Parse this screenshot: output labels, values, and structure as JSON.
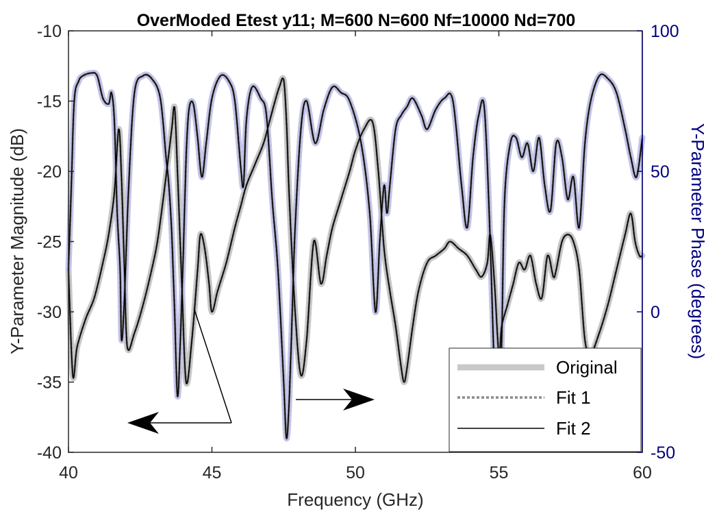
{
  "chart_data": {
    "type": "line",
    "title": "OverModed Etest y11; M=600 N=600 Nf=10000 Nd=700",
    "xlabel": "Frequency (GHz)",
    "ylabel_left": "Y-Parameter Magnitude (dB)",
    "ylabel_right": "Y-Parameter Phase (degrees)",
    "xlim": [
      40,
      60
    ],
    "ylim_left": [
      -40,
      -10
    ],
    "ylim_right": [
      -50,
      100
    ],
    "x_ticks": [
      "40",
      "45",
      "50",
      "55",
      "60"
    ],
    "y_left_ticks": [
      "-10",
      "-15",
      "-20",
      "-25",
      "-30",
      "-35",
      "-40"
    ],
    "y_right_ticks": [
      "100",
      "50",
      "0",
      "-50"
    ],
    "grid": false,
    "legend_position": "bottom-right",
    "legend": [
      "Original",
      "Fit 1",
      "Fit 2"
    ],
    "colors": {
      "original_magnitude": "#c8c8c8",
      "original_phase": "#c4c4ec",
      "fit1": "#8a8a8a",
      "fit2": "#000000",
      "right_axis": "#00007f"
    },
    "series": [
      {
        "name": "Magnitude",
        "axis": "left",
        "x": [
          40.0,
          40.15,
          40.3,
          40.6,
          40.9,
          41.2,
          41.4,
          41.6,
          41.75,
          41.85,
          41.95,
          42.05,
          42.3,
          42.6,
          42.9,
          43.1,
          43.3,
          43.45,
          43.6,
          43.7,
          43.8,
          43.95,
          44.1,
          44.3,
          44.5,
          44.6,
          44.75,
          44.9,
          45.0,
          45.2,
          45.5,
          45.8,
          46.0,
          46.2,
          46.5,
          46.8,
          47.0,
          47.2,
          47.35,
          47.5,
          47.6,
          47.7,
          47.9,
          48.1,
          48.3,
          48.55,
          48.8,
          49.0,
          49.2,
          49.5,
          49.8,
          50.0,
          50.3,
          50.6,
          50.8,
          51.0,
          51.2,
          51.4,
          51.6,
          51.7,
          51.8,
          52.0,
          52.2,
          52.5,
          52.8,
          53.1,
          53.3,
          53.6,
          53.9,
          54.2,
          54.4,
          54.6,
          54.7,
          54.85,
          55.0,
          55.1,
          55.3,
          55.5,
          55.7,
          55.9,
          56.1,
          56.3,
          56.5,
          56.7,
          56.9,
          57.0,
          57.2,
          57.4,
          57.6,
          57.8,
          58.0,
          58.2,
          58.5,
          58.8,
          59.1,
          59.4,
          59.6,
          59.75,
          59.9,
          60.0
        ],
        "values": [
          -27.0,
          -34.5,
          -32.5,
          -30.5,
          -29.0,
          -26.5,
          -24.5,
          -21.5,
          -17.0,
          -20.5,
          -27.0,
          -32.5,
          -31.5,
          -29.5,
          -27.0,
          -25.0,
          -22.0,
          -19.5,
          -17.0,
          -15.5,
          -20.0,
          -28.0,
          -35.0,
          -32.0,
          -27.0,
          -24.5,
          -25.5,
          -28.0,
          -30.0,
          -28.5,
          -26.5,
          -24.0,
          -22.5,
          -21.0,
          -19.5,
          -18.0,
          -16.5,
          -15.0,
          -14.0,
          -13.5,
          -16.5,
          -22.0,
          -30.0,
          -34.5,
          -32.0,
          -25.0,
          -28.0,
          -26.0,
          -24.0,
          -22.0,
          -20.0,
          -18.5,
          -17.0,
          -16.5,
          -20.0,
          -25.5,
          -28.5,
          -31.0,
          -34.0,
          -35.0,
          -34.0,
          -31.0,
          -28.5,
          -26.5,
          -26.0,
          -25.5,
          -25.0,
          -25.5,
          -26.0,
          -27.0,
          -27.5,
          -26.5,
          -24.5,
          -28.0,
          -33.0,
          -31.0,
          -29.5,
          -28.0,
          -26.5,
          -27.0,
          -26.0,
          -28.0,
          -29.0,
          -26.0,
          -27.5,
          -27.0,
          -25.0,
          -24.5,
          -25.0,
          -27.0,
          -32.0,
          -33.0,
          -31.5,
          -29.5,
          -27.0,
          -24.5,
          -23.0,
          -25.0,
          -26.0,
          -26.0
        ]
      },
      {
        "name": "Phase",
        "axis": "right",
        "x": [
          40.0,
          40.1,
          40.2,
          40.35,
          40.5,
          40.8,
          41.0,
          41.2,
          41.4,
          41.5,
          41.6,
          41.7,
          41.8,
          41.85,
          41.95,
          42.1,
          42.3,
          42.6,
          42.9,
          43.2,
          43.4,
          43.5,
          43.6,
          43.7,
          43.8,
          43.9,
          44.0,
          44.1,
          44.2,
          44.35,
          44.5,
          44.65,
          44.8,
          45.0,
          45.3,
          45.6,
          45.8,
          46.0,
          46.1,
          46.2,
          46.4,
          46.7,
          46.9,
          47.1,
          47.3,
          47.5,
          47.6,
          47.7,
          47.8,
          47.9,
          48.1,
          48.3,
          48.6,
          48.9,
          49.2,
          49.5,
          49.8,
          50.2,
          50.5,
          50.7,
          50.85,
          51.0,
          51.1,
          51.2,
          51.4,
          51.6,
          51.8,
          52.0,
          52.3,
          52.5,
          52.8,
          53.1,
          53.4,
          53.7,
          53.9,
          54.1,
          54.3,
          54.5,
          54.7,
          54.9,
          55.0,
          55.1,
          55.2,
          55.4,
          55.6,
          55.8,
          56.0,
          56.2,
          56.4,
          56.6,
          56.8,
          57.0,
          57.2,
          57.4,
          57.6,
          57.8,
          58.0,
          58.2,
          58.5,
          58.8,
          59.1,
          59.4,
          59.6,
          59.8,
          60.0
        ],
        "values": [
          15.0,
          45.0,
          75.0,
          82.0,
          84.0,
          85.0,
          84.0,
          76.0,
          74.0,
          78.0,
          68.0,
          35.0,
          15.0,
          -10.0,
          5.0,
          45.0,
          78.0,
          84.0,
          83.0,
          76.0,
          55.0,
          45.0,
          28.0,
          0.0,
          -30.0,
          -10.0,
          20.0,
          55.0,
          72.0,
          74.0,
          62.0,
          48.0,
          60.0,
          76.0,
          84.0,
          82.0,
          75.0,
          52.0,
          45.0,
          68.0,
          80.0,
          76.0,
          70.0,
          40.0,
          15.0,
          -25.0,
          -45.0,
          -30.0,
          0.0,
          30.0,
          65.0,
          75.0,
          60.0,
          72.0,
          80.0,
          78.0,
          75.0,
          60.0,
          35.0,
          0.0,
          25.0,
          45.0,
          35.0,
          45.0,
          65.0,
          70.0,
          73.0,
          76.0,
          70.0,
          65.0,
          72.0,
          76.0,
          75.0,
          45.0,
          30.0,
          55.0,
          70.0,
          72.0,
          25.0,
          -40.0,
          -45.0,
          -10.0,
          40.0,
          60.0,
          62.0,
          55.0,
          60.0,
          50.0,
          62.0,
          45.0,
          36.0,
          60.0,
          55.0,
          40.0,
          48.0,
          30.0,
          60.0,
          75.0,
          84.0,
          83.0,
          78.0,
          65.0,
          55.0,
          48.0,
          62.0
        ]
      }
    ]
  }
}
